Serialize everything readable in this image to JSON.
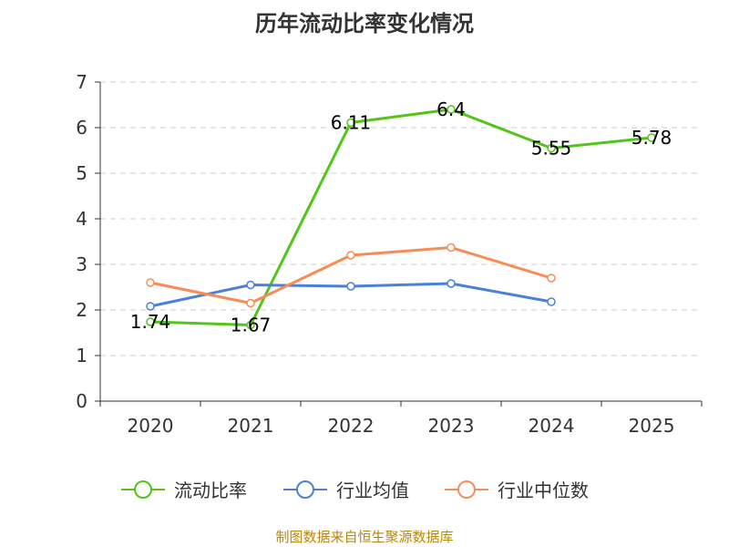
{
  "title": "历年流动比率变化情况",
  "source": "制图数据来自恒生聚源数据库",
  "chart_data": {
    "type": "line",
    "title": "历年流动比率变化情况",
    "categories": [
      "2020",
      "2021",
      "2022",
      "2023",
      "2024",
      "2025"
    ],
    "ylim": [
      0,
      7
    ],
    "yticks": [
      0,
      1,
      2,
      3,
      4,
      5,
      6,
      7
    ],
    "grid": true,
    "legend_position": "bottom",
    "series": [
      {
        "name": "流动比率",
        "color": "#52c41a",
        "values": [
          1.74,
          1.67,
          6.11,
          6.4,
          5.55,
          5.78
        ],
        "labels": [
          "1.74",
          "1.67",
          "6.11",
          "6.4",
          "5.55",
          "5.78"
        ]
      },
      {
        "name": "行业均值",
        "color": "#4a7fdc",
        "values": [
          2.08,
          2.55,
          2.52,
          2.58,
          2.18,
          null
        ]
      },
      {
        "name": "行业中位数",
        "color": "#f78c55",
        "values": [
          2.6,
          2.15,
          3.2,
          3.37,
          2.7,
          null
        ]
      }
    ]
  }
}
